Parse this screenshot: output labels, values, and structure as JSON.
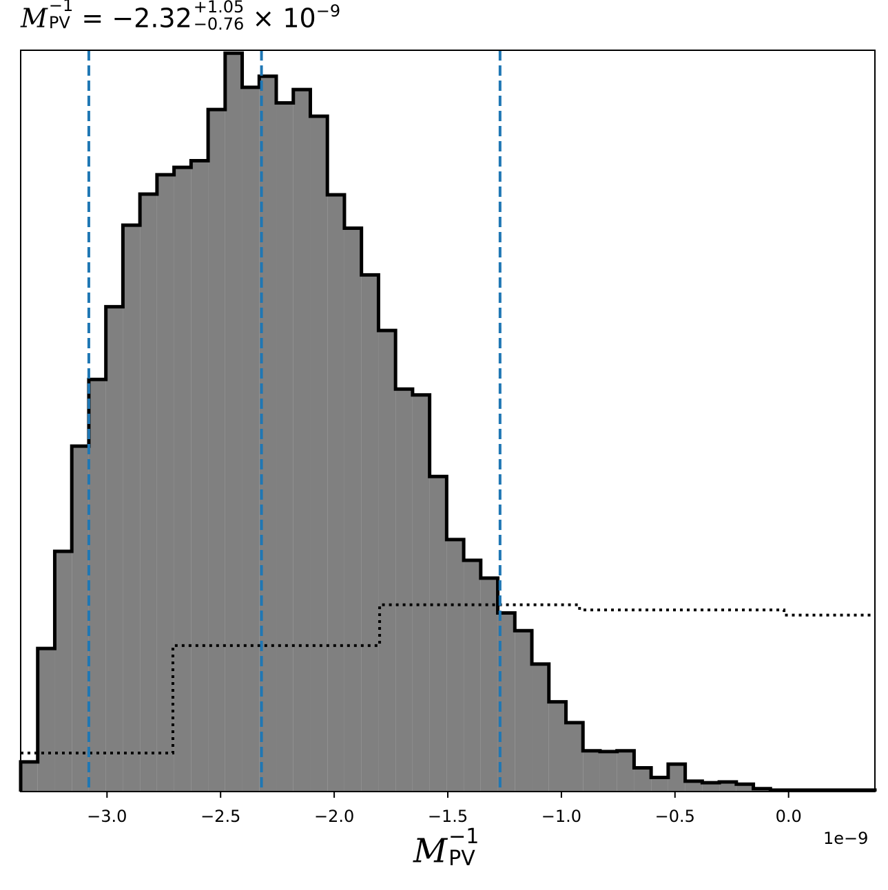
{
  "title": {
    "symbol": "M",
    "sub": "PV",
    "sup": "−1",
    "value_text": "= −2.32",
    "upper": "+1.05",
    "lower": "−0.76",
    "mult": "× 10",
    "exp": "−9"
  },
  "axes": {
    "xlabel_symbol": "M",
    "xlabel_sub": "PV",
    "xlabel_sup": "−1",
    "offset_text": "1e−9"
  },
  "chart_data": {
    "type": "histogram",
    "xlim": [
      -3.38,
      0.38
    ],
    "x_scale_factor": "1e-9",
    "xticks": [
      -3.0,
      -2.5,
      -2.0,
      -1.5,
      -1.0,
      -0.5,
      0.0
    ],
    "xtick_labels": [
      "−3.0",
      "−2.5",
      "−2.0",
      "−1.5",
      "−1.0",
      "−0.5",
      "0.0"
    ],
    "ylim": [
      0,
      1.0
    ],
    "bin_edges": [
      -3.38,
      -3.305,
      -3.23,
      -3.155,
      -3.08,
      -3.005,
      -2.93,
      -2.855,
      -2.78,
      -2.705,
      -2.63,
      -2.555,
      -2.48,
      -2.405,
      -2.33,
      -2.255,
      -2.18,
      -2.105,
      -2.03,
      -1.955,
      -1.88,
      -1.805,
      -1.73,
      -1.655,
      -1.58,
      -1.505,
      -1.43,
      -1.355,
      -1.28,
      -1.205,
      -1.13,
      -1.055,
      -0.98,
      -0.905,
      -0.83,
      -0.755,
      -0.68,
      -0.605,
      -0.53,
      -0.455,
      -0.38,
      -0.305,
      -0.23,
      -0.155,
      -0.08,
      -0.005,
      0.07,
      0.145,
      0.22,
      0.295,
      0.38
    ],
    "counts": [
      0.04,
      0.193,
      0.324,
      0.466,
      0.556,
      0.654,
      0.764,
      0.806,
      0.832,
      0.842,
      0.851,
      0.92,
      0.996,
      0.95,
      0.965,
      0.929,
      0.947,
      0.911,
      0.805,
      0.76,
      0.697,
      0.622,
      0.543,
      0.535,
      0.425,
      0.34,
      0.312,
      0.288,
      0.241,
      0.217,
      0.172,
      0.121,
      0.093,
      0.055,
      0.054,
      0.055,
      0.032,
      0.019,
      0.037,
      0.014,
      0.012,
      0.013,
      0.01,
      0.004,
      0.002,
      0.002,
      0.002,
      0.002,
      0.002,
      0.002
    ],
    "fill_color": "#808080",
    "edge_color": "#000000",
    "prior": {
      "style": "dotted",
      "color": "#000000",
      "steps": [
        {
          "x0": -3.38,
          "x1": -2.71,
          "y": 0.052
        },
        {
          "x0": -2.71,
          "x1": -1.8,
          "y": 0.197
        },
        {
          "x0": -1.8,
          "x1": -0.92,
          "y": 0.252
        },
        {
          "x0": -0.92,
          "x1": -0.02,
          "y": 0.245
        },
        {
          "x0": -0.02,
          "x1": 0.38,
          "y": 0.238
        }
      ]
    },
    "quantiles": {
      "values": [
        -3.08,
        -2.32,
        -1.27
      ],
      "color": "#1f77b4",
      "style": "dashed"
    }
  }
}
